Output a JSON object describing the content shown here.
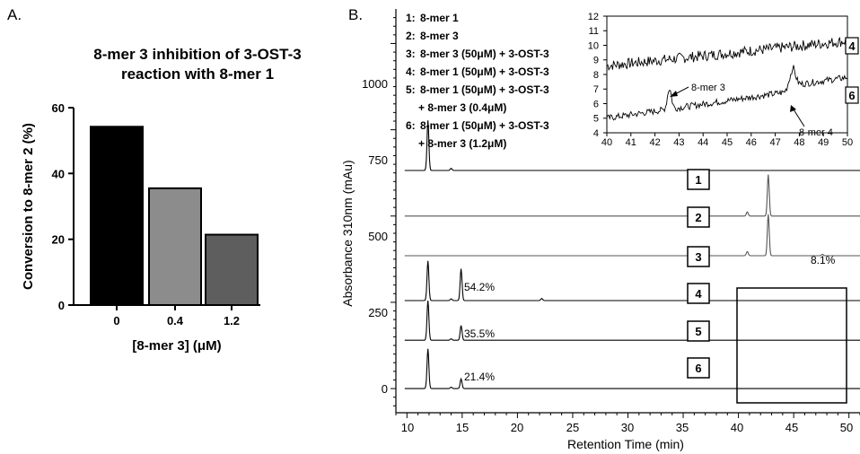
{
  "panels": {
    "a_label": "A.",
    "b_label": "B."
  },
  "chart_data": [
    {
      "type": "bar",
      "title_line1": "8-mer 3 inhibition of 3-OST-3",
      "title_line2": "reaction with 8-mer 1",
      "xlabel": "[8-mer 3] (μM)",
      "ylabel": "Conversion to 8-mer 2 (%)",
      "categories": [
        "0",
        "0.4",
        "1.2"
      ],
      "values": [
        54.2,
        35.5,
        21.4
      ],
      "ylim": [
        0,
        60
      ],
      "yticks": [
        "0",
        "20",
        "40",
        "60"
      ],
      "colors": [
        "#000000",
        "#8c8c8c",
        "#5e5e5e"
      ]
    },
    {
      "type": "line",
      "xlabel": "Retention Time (min)",
      "ylabel": "Absorbance 310nm (mAu)",
      "xlim": [
        9,
        51
      ],
      "ylim": [
        -70,
        1100
      ],
      "xticks": [
        "10",
        "15",
        "20",
        "25",
        "30",
        "35",
        "40",
        "45",
        "50"
      ],
      "yticks": [
        "0",
        "250",
        "500",
        "750",
        "1000"
      ],
      "legend": [
        {
          "num": "1:",
          "text": "8-mer 1"
        },
        {
          "num": "2:",
          "text": "8-mer 3"
        },
        {
          "num": "3:",
          "text": "8-mer 3 (50μM) + 3-OST-3"
        },
        {
          "num": "4:",
          "text": "8-mer 1 (50μM) + 3-OST-3"
        },
        {
          "num": "5:",
          "text": "8-mer 1 (50μM) + 3-OST-3"
        },
        {
          "num": "",
          "text": "+ 8-mer 3 (0.4μM)"
        },
        {
          "num": "6:",
          "text": "8-mer 1 (50μM) + 3-OST-3"
        },
        {
          "num": "",
          "text": "+ 8-mer 3 (1.2μM)"
        }
      ],
      "series": [
        {
          "name": "1",
          "baseline": 632,
          "peaks": [
            {
              "x": 11.9,
              "h": 145
            },
            {
              "x": 14.0,
              "h": 6
            }
          ]
        },
        {
          "name": "2",
          "baseline": 500,
          "peaks": [
            {
              "x": 40.8,
              "h": 12
            },
            {
              "x": 42.7,
              "h": 120
            }
          ]
        },
        {
          "name": "3",
          "baseline": 385,
          "peaks": [
            {
              "x": 40.8,
              "h": 12
            },
            {
              "x": 42.7,
              "h": 120
            },
            {
              "x": 47.6,
              "h": 4
            }
          ]
        },
        {
          "name": "4",
          "baseline": 255,
          "peaks": [
            {
              "x": 11.9,
              "h": 115
            },
            {
              "x": 14.0,
              "h": 5
            },
            {
              "x": 14.9,
              "h": 92
            },
            {
              "x": 22.2,
              "h": 6
            }
          ]
        },
        {
          "name": "5",
          "baseline": 140,
          "peaks": [
            {
              "x": 11.9,
              "h": 115
            },
            {
              "x": 14.0,
              "h": 4
            },
            {
              "x": 14.9,
              "h": 43
            }
          ]
        },
        {
          "name": "6",
          "baseline": 0,
          "peaks": [
            {
              "x": 11.9,
              "h": 115
            },
            {
              "x": 14.0,
              "h": 4
            },
            {
              "x": 14.9,
              "h": 28
            }
          ]
        }
      ],
      "trace_labels": [
        "1",
        "2",
        "3",
        "4",
        "5",
        "6"
      ],
      "annotations": [
        "54.2%",
        "35.5%",
        "21.4%",
        "8.1%"
      ],
      "zoom_box_x": [
        40,
        50
      ]
    },
    {
      "type": "line",
      "title": "",
      "xlim": [
        40,
        50
      ],
      "ylim": [
        4,
        12
      ],
      "xticks": [
        "40",
        "41",
        "42",
        "43",
        "44",
        "45",
        "46",
        "47",
        "48",
        "49",
        "50"
      ],
      "yticks": [
        "4",
        "5",
        "6",
        "7",
        "8",
        "9",
        "10",
        "11",
        "12"
      ],
      "series": [
        {
          "name": "4",
          "start": 8.6,
          "end": 10.3
        },
        {
          "name": "6",
          "start": 5.0,
          "end": 7.4
        }
      ],
      "trace_labels": [
        "4",
        "6"
      ],
      "annotations": [
        "8-mer 3",
        "8-mer 4"
      ]
    }
  ]
}
